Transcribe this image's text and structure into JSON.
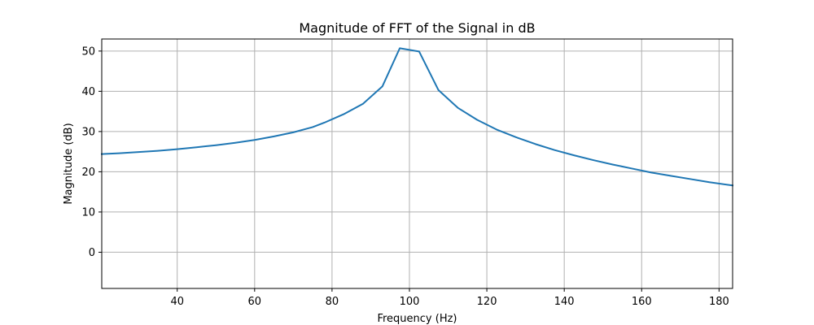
{
  "chart_data": {
    "type": "line",
    "title": "Magnitude of FFT of the Signal in dB",
    "xlabel": "Frequency (Hz)",
    "ylabel": "Magnitude (dB)",
    "xlim": [
      20.5,
      183.5
    ],
    "ylim": [
      -9,
      53
    ],
    "xticks": [
      40,
      60,
      80,
      100,
      120,
      140,
      160,
      180
    ],
    "yticks": [
      0,
      10,
      20,
      30,
      40,
      50
    ],
    "grid": true,
    "series": [
      {
        "color": "#1f77b4",
        "x": [
          20.5,
          25,
          30,
          35,
          40,
          45,
          50,
          55,
          60,
          65,
          70,
          75,
          78,
          83,
          88,
          93,
          97.5,
          102.5,
          107.5,
          112.5,
          117.5,
          122.5,
          127.5,
          132.5,
          137.5,
          142.5,
          147.5,
          152.5,
          157.5,
          162.5,
          167.5,
          172.5,
          177.5,
          183.5
        ],
        "y": [
          24.4,
          24.6,
          24.9,
          25.2,
          25.6,
          26.1,
          26.6,
          27.2,
          27.9,
          28.8,
          29.8,
          31.1,
          32.2,
          34.3,
          36.9,
          41.2,
          50.7,
          49.9,
          40.3,
          35.9,
          32.9,
          30.5,
          28.6,
          26.9,
          25.4,
          24.1,
          22.9,
          21.8,
          20.8,
          19.8,
          19.0,
          18.2,
          17.4,
          16.6
        ]
      }
    ]
  }
}
